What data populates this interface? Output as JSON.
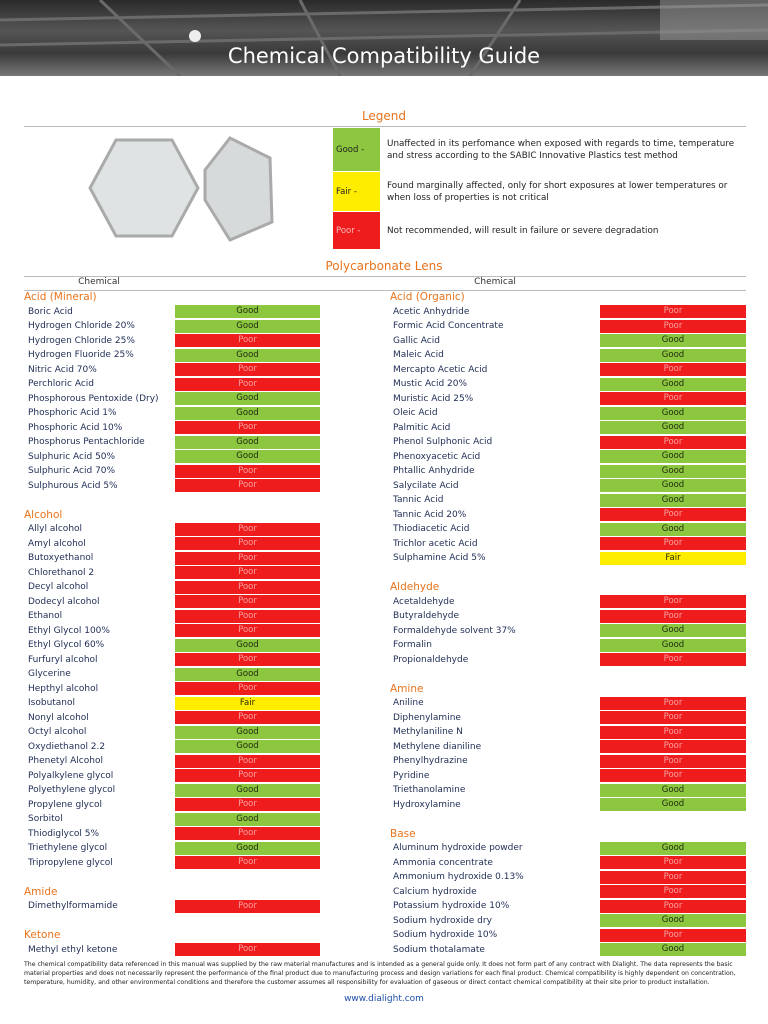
{
  "header": {
    "title": "Chemical Compatibility Guide"
  },
  "legend": {
    "title": "Legend",
    "items": [
      {
        "rating": "Good -",
        "description": "Unaffected in its perfomance when exposed with regards to time, temperature and stress according to the SABIC Innovative Plastics test method"
      },
      {
        "rating": "Fair -",
        "description": "Found marginally affected, only for short exposures at lower temperatures or when loss of properties is not critical"
      },
      {
        "rating": "Poor -",
        "description": "Not recommended, will result in failure or severe degradation"
      }
    ]
  },
  "section_title": "Polycarbonate Lens",
  "column_headers": [
    "Chemical",
    "Chemical"
  ],
  "left_column": [
    {
      "heading": "Acid (Mineral)",
      "rows": [
        [
          "Boric Acid",
          "Good"
        ],
        [
          "Hydrogen Chloride 20%",
          "Good"
        ],
        [
          "Hydrogen Chloride 25%",
          "Poor"
        ],
        [
          "Hydrogen Fluoride 25%",
          "Good"
        ],
        [
          "Nitric Acid 70%",
          "Poor"
        ],
        [
          "Perchloric Acid",
          "Poor"
        ],
        [
          "Phosphorous Pentoxide (Dry)",
          "Good"
        ],
        [
          "Phosphoric Acid 1%",
          "Good"
        ],
        [
          "Phosphoric Acid 10%",
          "Poor"
        ],
        [
          "Phosphorus Pentachloride",
          "Good"
        ],
        [
          "Sulphuric Acid 50%",
          "Good"
        ],
        [
          "Sulphuric Acid 70%",
          "Poor"
        ],
        [
          "Sulphurous Acid 5%",
          "Poor"
        ]
      ]
    },
    {
      "heading": "Alcohol",
      "rows": [
        [
          "Allyl alcohol",
          "Poor"
        ],
        [
          "Amyl alcohol",
          "Poor"
        ],
        [
          "Butoxyethanol",
          "Poor"
        ],
        [
          "Chlorethanol 2",
          "Poor"
        ],
        [
          "Decyl alcohol",
          "Poor"
        ],
        [
          "Dodecyl alcohol",
          "Poor"
        ],
        [
          "Ethanol",
          "Poor"
        ],
        [
          "Ethyl Glycol 100%",
          "Poor"
        ],
        [
          "Ethyl Glycol 60%",
          "Good"
        ],
        [
          "Furfuryl alcohol",
          "Poor"
        ],
        [
          "Glycerine",
          "Good"
        ],
        [
          "Hepthyl alcohol",
          "Poor"
        ],
        [
          "Isobutanol",
          "Fair"
        ],
        [
          "Nonyl alcohol",
          "Poor"
        ],
        [
          "Octyl alcohol",
          "Good"
        ],
        [
          "Oxydiethanol 2.2",
          "Good"
        ],
        [
          "Phenetyl Alcohol",
          "Poor"
        ],
        [
          "Polyalkylene glycol",
          "Poor"
        ],
        [
          "Polyethylene glycol",
          "Good"
        ],
        [
          "Propylene glycol",
          "Poor"
        ],
        [
          "Sorbitol",
          "Good"
        ],
        [
          "Thiodiglycol 5%",
          "Poor"
        ],
        [
          "Triethylene glycol",
          "Good"
        ],
        [
          "Tripropylene glycol",
          "Poor"
        ]
      ]
    },
    {
      "heading": "Amide",
      "rows": [
        [
          "Dimethylformamide",
          "Poor"
        ]
      ]
    },
    {
      "heading": "Ketone",
      "rows": [
        [
          "Methyl ethyl ketone",
          "Poor"
        ]
      ]
    }
  ],
  "right_column": [
    {
      "heading": "Acid (Organic)",
      "rows": [
        [
          "Acetic Anhydride",
          "Poor"
        ],
        [
          "Formic Acid Concentrate",
          "Poor"
        ],
        [
          "Gallic Acid",
          "Good"
        ],
        [
          "Maleic Acid",
          "Good"
        ],
        [
          "Mercapto Acetic Acid",
          "Poor"
        ],
        [
          "Mustic Acid 20%",
          "Good"
        ],
        [
          "Muristic Acid 25%",
          "Poor"
        ],
        [
          "Oleic Acid",
          "Good"
        ],
        [
          "Palmitic Acid",
          "Good"
        ],
        [
          "Phenol Sulphonic Acid",
          "Poor"
        ],
        [
          "Phenoxyacetic Acid",
          "Good"
        ],
        [
          "Phtallic Anhydride",
          "Good"
        ],
        [
          "Salycilate Acid",
          "Good"
        ],
        [
          "Tannic Acid",
          "Good"
        ],
        [
          "Tannic Acid 20%",
          "Poor"
        ],
        [
          "Thiodiacetic Acid",
          "Good"
        ],
        [
          "Trichlor acetic Acid",
          "Poor"
        ],
        [
          "Sulphamine Acid 5%",
          "Fair"
        ]
      ]
    },
    {
      "heading": "Aldehyde",
      "rows": [
        [
          "Acetaldehyde",
          "Poor"
        ],
        [
          "Butyraldehyde",
          "Poor"
        ],
        [
          "Formaldehyde solvent 37%",
          "Good"
        ],
        [
          "Formalin",
          "Good"
        ],
        [
          "Propionaldehyde",
          "Poor"
        ]
      ]
    },
    {
      "heading": "Amine",
      "rows": [
        [
          "Aniline",
          "Poor"
        ],
        [
          "Diphenylamine",
          "Poor"
        ],
        [
          "Methylaniline N",
          "Poor"
        ],
        [
          "Methylene dianiline",
          "Poor"
        ],
        [
          "Phenylhydrazine",
          "Poor"
        ],
        [
          "Pyridine",
          "Poor"
        ],
        [
          "Triethanolamine",
          "Good"
        ],
        [
          "Hydroxylamine",
          "Good"
        ]
      ]
    },
    {
      "heading": "Base",
      "rows": [
        [
          "Aluminum hydroxide powder",
          "Good"
        ],
        [
          "Ammonia concentrate",
          "Poor"
        ],
        [
          "Ammonium hydroxide 0.13%",
          "Poor"
        ],
        [
          "Calcium hydroxide",
          "Poor"
        ],
        [
          "Potassium hydroxide 10%",
          "Poor"
        ],
        [
          "Sodium hydroxide dry",
          "Good"
        ],
        [
          "Sodium hydroxide 10%",
          "Poor"
        ],
        [
          "Sodium thotalamate",
          "Good"
        ]
      ]
    }
  ],
  "footer": {
    "disclaimer": "The chemical compatibility data referenced in this manual was supplied by the raw material manufactures and is intended as a general guide only. It does not form part of any contract with Dialight. The data represents the basic material properties and does not necessarily represent the performance of the final product due to manufacturing process and design variations for each final product. Chemical compatibility is highly dependent on concentration, temperature, humidity, and other environmental conditions and therefore the customer assumes all responsibility for evaluation of gaseous or direct contact chemical compatibility at their site prior to product installation.",
    "url": "www.dialight.com"
  }
}
